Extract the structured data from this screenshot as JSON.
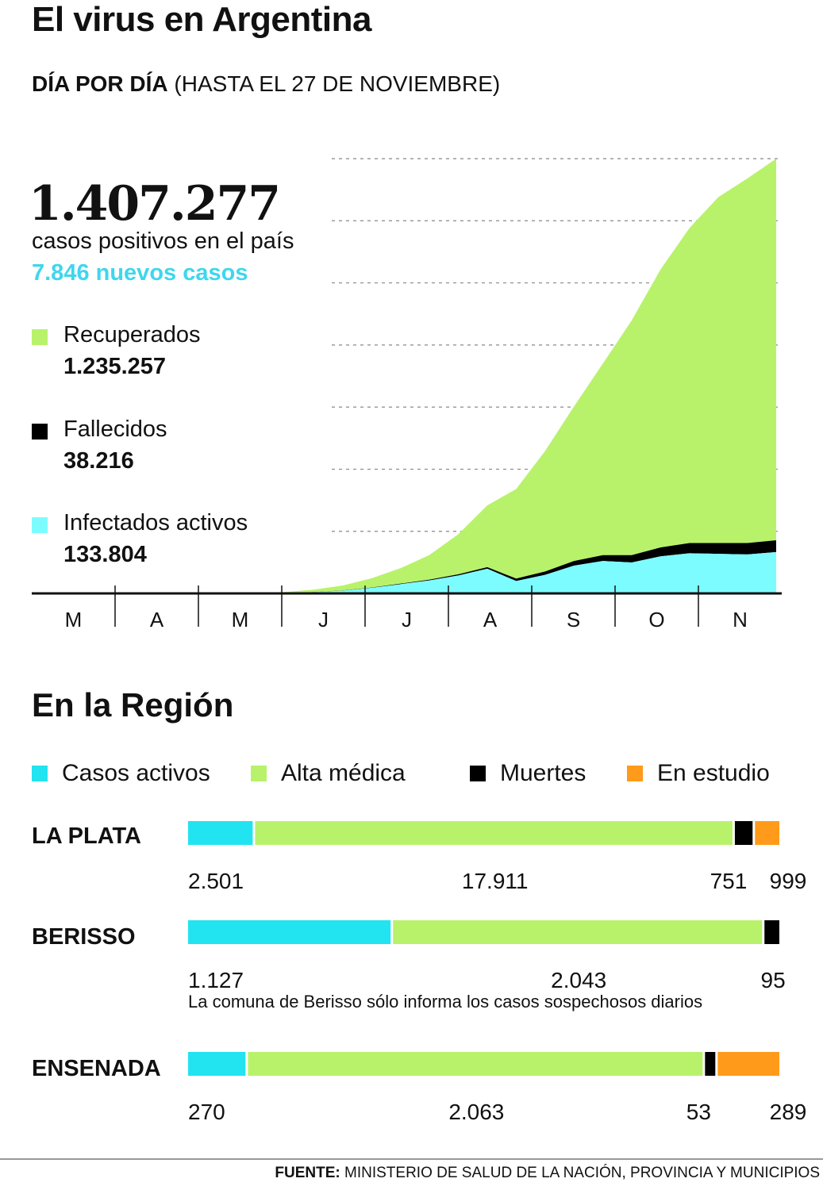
{
  "header": {
    "title": "El virus en Argentina",
    "subtitle_bold": "DÍA POR DÍA",
    "subtitle_rest": "(HASTA EL 27 DE NOVIEMBRE)"
  },
  "summary": {
    "total": "1.407.277",
    "total_label": "casos positivos en el país",
    "new_cases": "7.846 nuevos casos",
    "items": [
      {
        "label": "Recuperados",
        "value": "1.235.257",
        "color": "#b8f26a"
      },
      {
        "label": "Fallecidos",
        "value": "38.216",
        "color": "#000000"
      },
      {
        "label": "Infectados activos",
        "value": "133.804",
        "color": "#7dfcff"
      }
    ]
  },
  "chart_data": [
    {
      "type": "area",
      "stacked": true,
      "months": [
        "M",
        "A",
        "M",
        "J",
        "J",
        "A",
        "S",
        "O",
        "N"
      ],
      "x_unit": "month",
      "x": [
        1,
        2,
        3,
        4,
        5,
        6,
        7,
        8,
        9,
        10,
        11,
        12,
        13,
        14,
        15,
        16,
        17,
        18,
        19,
        20,
        21
      ],
      "ylim": [
        0,
        1407277
      ],
      "grid": "dashed horizontal",
      "series": [
        {
          "name": "Infectados activos",
          "color": "#7dfcff",
          "values": [
            0,
            0,
            500,
            1500,
            4000,
            9000,
            18000,
            30000,
            42000,
            58000,
            80000,
            40000,
            60000,
            90000,
            105000,
            100000,
            120000,
            130000,
            128000,
            126000,
            133804
          ]
        },
        {
          "name": "Fallecidos",
          "color": "#000000",
          "values": [
            0,
            0,
            20,
            100,
            300,
            600,
            1000,
            1700,
            2600,
            3800,
            5000,
            8000,
            11000,
            15000,
            19000,
            24000,
            29000,
            33000,
            35000,
            37000,
            38216
          ]
        },
        {
          "name": "Recuperados",
          "color": "#b8f26a",
          "values": [
            0,
            0,
            1000,
            3000,
            8000,
            16000,
            30000,
            50000,
            80000,
            130000,
            200000,
            290000,
            390000,
            500000,
            620000,
            760000,
            900000,
            1020000,
            1120000,
            1180000,
            1235257
          ]
        }
      ]
    },
    {
      "type": "bar",
      "stacked": true,
      "orientation": "horizontal",
      "title": "En la Región",
      "legend": [
        {
          "label": "Casos activos",
          "color": "#22e3f0"
        },
        {
          "label": "Alta médica",
          "color": "#b8f26a"
        },
        {
          "label": "Muertes",
          "color": "#000000"
        },
        {
          "label": "En estudio",
          "color": "#ff9a1a"
        }
      ],
      "regions": [
        {
          "name": "LA PLATA",
          "values": [
            2501,
            17911,
            751,
            999
          ],
          "labels": [
            "2.501",
            "17.911",
            "751",
            "999"
          ]
        },
        {
          "name": "BERISSO",
          "values": [
            1127,
            2043,
            95,
            0
          ],
          "labels": [
            "1.127",
            "2.043",
            "95",
            ""
          ],
          "note": "La comuna de Berisso sólo informa los casos sospechosos diarios"
        },
        {
          "name": "ENSENADA",
          "values": [
            270,
            2063,
            53,
            289
          ],
          "labels": [
            "270",
            "2.063",
            "53",
            "289"
          ]
        }
      ]
    }
  ],
  "footer": {
    "label": "FUENTE:",
    "text": "MINISTERIO DE SALUD DE LA NACIÓN, PROVINCIA Y MUNICIPIOS"
  }
}
